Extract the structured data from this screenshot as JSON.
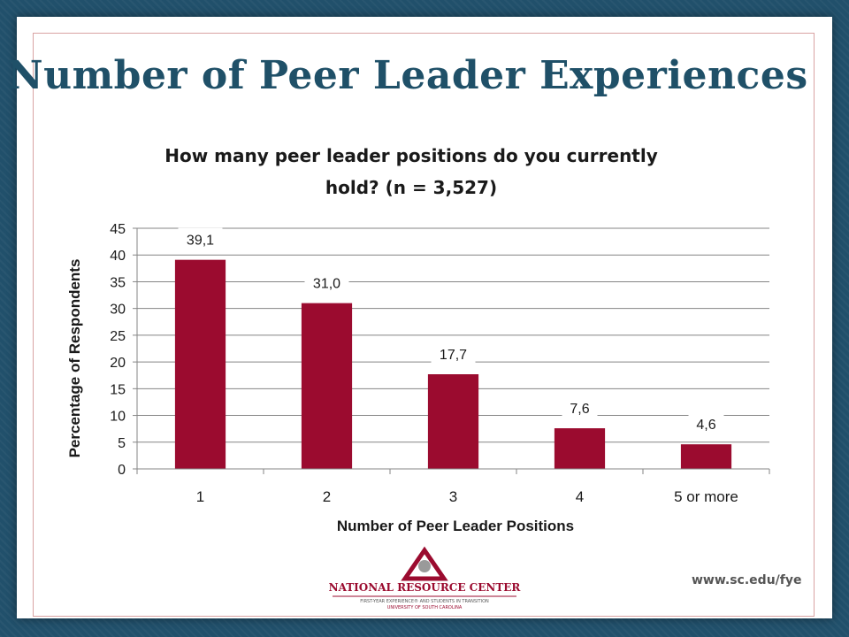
{
  "slide": {
    "title": "Number of Peer Leader Experiences",
    "footer": {
      "org_name": "NATIONAL RESOURCE CENTER",
      "org_line2": "FIRST-YEAR EXPERIENCE® AND STUDENTS IN TRANSITION",
      "org_line3": "UNIVERSITY OF SOUTH CAROLINA",
      "website": "www.sc.edu/fye"
    }
  },
  "colors": {
    "bar": "#9b0b2f",
    "title": "#1f5068",
    "background": "#21506b",
    "gridline": "#858585"
  },
  "chart_data": {
    "type": "bar",
    "title_line1": "How many peer leader positions do you currently",
    "title_line2": "hold? (n = 3,527)",
    "categories": [
      "1",
      "2",
      "3",
      "4",
      "5 or more"
    ],
    "values": [
      39.1,
      31.0,
      17.7,
      7.6,
      4.6
    ],
    "data_labels": [
      "39,1",
      "31,0",
      "17,7",
      "7,6",
      "4,6"
    ],
    "xlabel": "Number of Peer Leader Positions",
    "ylabel": "Percentage of Respondents",
    "ylim": [
      0,
      45
    ],
    "yticks": [
      0,
      5,
      10,
      15,
      20,
      25,
      30,
      35,
      40,
      45
    ],
    "grid": true,
    "legend": "none"
  }
}
